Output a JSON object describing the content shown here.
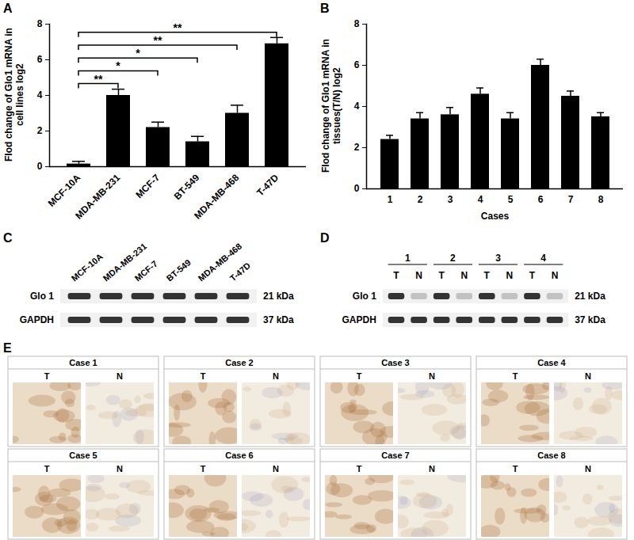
{
  "chart_data": [
    {
      "type": "bar",
      "title": "A",
      "ylabel": "Flod change of Glo1 mRNA in cell lines log2",
      "categories": [
        "MCF-10A",
        "MDA-MB-231",
        "MCF-7",
        "BT-549",
        "MDA-MB-468",
        "T-47D"
      ],
      "values": [
        0.15,
        4.0,
        2.2,
        1.4,
        3.0,
        6.9
      ],
      "errors": [
        0.15,
        0.35,
        0.3,
        0.3,
        0.45,
        0.35
      ],
      "color": "#000000",
      "ylim": [
        0,
        8
      ],
      "yticks": [
        0,
        2,
        4,
        6,
        8
      ],
      "annotations": [
        {
          "from": "MCF-10A",
          "to": "MDA-MB-231",
          "label": "**"
        },
        {
          "from": "MCF-10A",
          "to": "MCF-7",
          "label": "*"
        },
        {
          "from": "MCF-10A",
          "to": "BT-549",
          "label": "*"
        },
        {
          "from": "MCF-10A",
          "to": "MDA-MB-468",
          "label": "**"
        },
        {
          "from": "MCF-10A",
          "to": "T-47D",
          "label": "**"
        }
      ]
    },
    {
      "type": "bar",
      "title": "B",
      "ylabel": "Flod change of Glo1 mRNA in tissues(T/N) log2",
      "xlabel": "Cases",
      "categories": [
        "1",
        "2",
        "3",
        "4",
        "5",
        "6",
        "7",
        "8"
      ],
      "values": [
        2.4,
        3.4,
        3.6,
        4.6,
        3.4,
        6.0,
        4.5,
        3.5
      ],
      "errors": [
        0.2,
        0.3,
        0.35,
        0.3,
        0.3,
        0.3,
        0.25,
        0.2
      ],
      "color": "#000000",
      "ylim": [
        0,
        8
      ],
      "yticks": [
        0,
        2,
        4,
        6,
        8
      ]
    }
  ],
  "blots": [
    {
      "panel": "C",
      "lanes": [
        "MCF-10A",
        "MDA-MB-231",
        "MCF-7",
        "BT-549",
        "MDA-MB-468",
        "T-47D"
      ],
      "bands": [
        {
          "name": "Glo 1",
          "size": "21 kDa"
        },
        {
          "name": "GAPDH",
          "size": "37 kDa"
        }
      ]
    },
    {
      "panel": "D",
      "groups": [
        {
          "label": "1",
          "lanes": [
            "T",
            "N"
          ]
        },
        {
          "label": "2",
          "lanes": [
            "T",
            "N"
          ]
        },
        {
          "label": "3",
          "lanes": [
            "T",
            "N"
          ]
        },
        {
          "label": "4",
          "lanes": [
            "T",
            "N"
          ]
        }
      ],
      "bands": [
        {
          "name": "Glo 1",
          "size": "21 kDa"
        },
        {
          "name": "GAPDH",
          "size": "37 kDa"
        }
      ]
    }
  ],
  "ihc": {
    "panel": "E",
    "cases": [
      {
        "label": "Case 1",
        "lanes": [
          "T",
          "N"
        ]
      },
      {
        "label": "Case 2",
        "lanes": [
          "T",
          "N"
        ]
      },
      {
        "label": "Case 3",
        "lanes": [
          "T",
          "N"
        ]
      },
      {
        "label": "Case 4",
        "lanes": [
          "T",
          "N"
        ]
      },
      {
        "label": "Case 5",
        "lanes": [
          "T",
          "N"
        ]
      },
      {
        "label": "Case 6",
        "lanes": [
          "T",
          "N"
        ]
      },
      {
        "label": "Case 7",
        "lanes": [
          "T",
          "N"
        ]
      },
      {
        "label": "Case 8",
        "lanes": [
          "T",
          "N"
        ]
      }
    ]
  }
}
